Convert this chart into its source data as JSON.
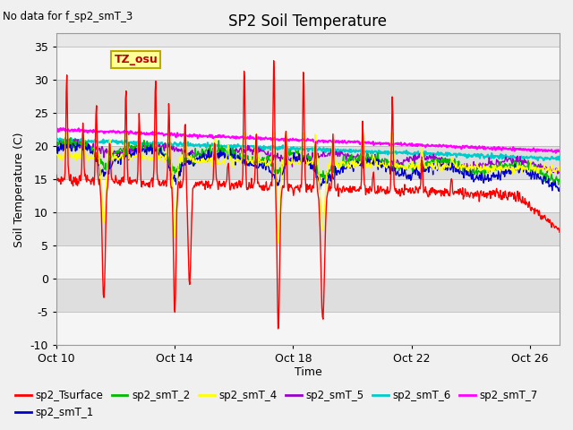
{
  "title": "SP2 Soil Temperature",
  "no_data_text": "No data for f_sp2_smT_3",
  "xlabel": "Time",
  "ylabel": "Soil Temperature (C)",
  "ylim": [
    -10,
    37
  ],
  "yticks": [
    -10,
    -5,
    0,
    5,
    10,
    15,
    20,
    25,
    30,
    35
  ],
  "xtick_labels": [
    "Oct 10",
    "Oct 14",
    "Oct 18",
    "Oct 22",
    "Oct 26"
  ],
  "xtick_positions": [
    0,
    4,
    8,
    12,
    16
  ],
  "tz_label": "TZ_osu",
  "bg_color": "#f0f0f0",
  "plot_bg_color": "#e8e8e8",
  "series_colors": {
    "sp2_Tsurface": "#ff0000",
    "sp2_smT_1": "#0000cc",
    "sp2_smT_2": "#00bb00",
    "sp2_smT_4": "#ffff00",
    "sp2_smT_5": "#9900cc",
    "sp2_smT_6": "#00cccc",
    "sp2_smT_7": "#ff00ff"
  }
}
